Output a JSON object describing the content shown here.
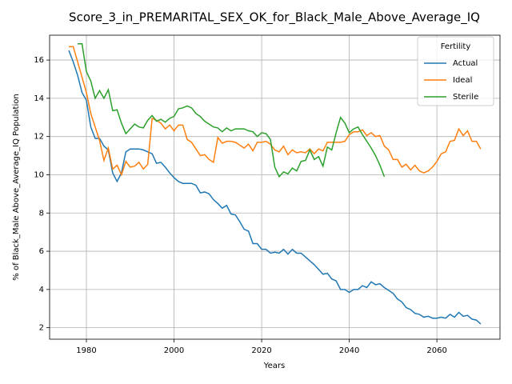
{
  "chart_data": {
    "type": "line",
    "title": "Score_3_in_PREMARITAL_SEX_OK_for_Black_Male_Above_Average_IQ",
    "x_label": "Years",
    "y_label": "% of Black_Male Above_Average_IQ Population",
    "legend_title": "Fertility",
    "legend_loc": "upper right",
    "grid": true,
    "xlim": [
      1971.6,
      2074.4
    ],
    "ylim": [
      1.4,
      17.3
    ],
    "xticks": [
      1980,
      2000,
      2020,
      2040,
      2060
    ],
    "yticks": [
      2,
      4,
      6,
      8,
      10,
      12,
      14,
      16
    ],
    "x": [
      1976,
      1977,
      1978,
      1979,
      1980,
      1981,
      1982,
      1983,
      1984,
      1985,
      1986,
      1987,
      1988,
      1989,
      1990,
      1991,
      1992,
      1993,
      1994,
      1995,
      1996,
      1997,
      1998,
      1999,
      2000,
      2001,
      2002,
      2003,
      2004,
      2005,
      2006,
      2007,
      2008,
      2009,
      2010,
      2011,
      2012,
      2013,
      2014,
      2015,
      2016,
      2017,
      2018,
      2019,
      2020,
      2021,
      2022,
      2023,
      2024,
      2025,
      2026,
      2027,
      2028,
      2029,
      2030,
      2031,
      2032,
      2033,
      2034,
      2035,
      2036,
      2037,
      2038,
      2039,
      2040,
      2041,
      2042,
      2043,
      2044,
      2045,
      2046,
      2047,
      2048,
      2049,
      2050,
      2051,
      2052,
      2053,
      2054,
      2055,
      2056,
      2057,
      2058,
      2059,
      2060,
      2061,
      2062,
      2063,
      2064,
      2065,
      2066,
      2067,
      2068,
      2069,
      2070
    ],
    "series": [
      {
        "name": "Actual",
        "color": "#1f77b4",
        "values": [
          16.5,
          15.9,
          15.2,
          14.3,
          13.9,
          12.5,
          11.9,
          11.9,
          11.5,
          11.3,
          10.1,
          9.65,
          10.1,
          11.2,
          11.35,
          11.35,
          11.35,
          11.3,
          11.2,
          11.1,
          10.6,
          10.65,
          10.4,
          10.1,
          9.85,
          9.65,
          9.55,
          9.55,
          9.55,
          9.45,
          9.05,
          9.1,
          9.0,
          8.7,
          8.5,
          8.25,
          8.4,
          7.95,
          7.9,
          7.55,
          7.15,
          7.05,
          6.4,
          6.4,
          6.1,
          6.1,
          5.9,
          5.95,
          5.9,
          6.1,
          5.85,
          6.1,
          5.9,
          5.9,
          5.7,
          5.5,
          5.3,
          5.05,
          4.8,
          4.85,
          4.55,
          4.45,
          4.0,
          4.0,
          3.85,
          4.0,
          4.0,
          4.2,
          4.1,
          4.4,
          4.25,
          4.3,
          4.1,
          3.95,
          3.8,
          3.5,
          3.35,
          3.05,
          2.95,
          2.75,
          2.7,
          2.55,
          2.6,
          2.5,
          2.5,
          2.55,
          2.5,
          2.7,
          2.55,
          2.8,
          2.6,
          2.65,
          2.45,
          2.4,
          2.2
        ]
      },
      {
        "name": "Ideal",
        "color": "#ff7f0e",
        "values": [
          16.7,
          16.7,
          15.9,
          15.1,
          14.3,
          13.2,
          12.5,
          11.8,
          10.75,
          11.4,
          10.3,
          10.5,
          10.0,
          10.7,
          10.4,
          10.45,
          10.65,
          10.3,
          10.55,
          12.95,
          12.85,
          12.7,
          12.4,
          12.6,
          12.3,
          12.6,
          12.6,
          11.85,
          11.7,
          11.35,
          11.0,
          11.05,
          10.8,
          10.65,
          11.95,
          11.65,
          11.75,
          11.75,
          11.7,
          11.55,
          11.4,
          11.6,
          11.25,
          11.7,
          11.7,
          11.75,
          11.6,
          11.3,
          11.2,
          11.5,
          11.05,
          11.3,
          11.15,
          11.2,
          11.15,
          11.35,
          11.1,
          11.35,
          11.25,
          11.7,
          11.7,
          11.7,
          11.7,
          11.75,
          12.1,
          12.25,
          12.25,
          12.35,
          12.05,
          12.2,
          12.0,
          12.05,
          11.5,
          11.3,
          10.8,
          10.8,
          10.4,
          10.55,
          10.25,
          10.5,
          10.2,
          10.1,
          10.2,
          10.4,
          10.7,
          11.1,
          11.2,
          11.75,
          11.8,
          12.4,
          12.05,
          12.3,
          11.75,
          11.75,
          11.35
        ]
      },
      {
        "name": "Sterile",
        "color": "#2ca02c",
        "values": [
          null,
          null,
          16.85,
          16.85,
          15.4,
          14.9,
          14.0,
          14.4,
          14.0,
          14.45,
          13.35,
          13.4,
          12.7,
          12.15,
          12.4,
          12.65,
          12.5,
          12.45,
          12.85,
          13.1,
          12.8,
          12.9,
          12.75,
          12.95,
          13.05,
          13.45,
          13.5,
          13.6,
          13.5,
          13.2,
          13.05,
          12.8,
          12.65,
          12.5,
          12.45,
          12.25,
          12.45,
          12.3,
          12.4,
          12.4,
          12.4,
          12.3,
          12.25,
          12.0,
          12.2,
          12.15,
          11.85,
          10.4,
          9.9,
          10.15,
          10.05,
          10.35,
          10.2,
          10.7,
          10.75,
          11.3,
          10.8,
          10.95,
          10.45,
          11.45,
          11.3,
          12.2,
          13.0,
          12.7,
          12.2,
          12.4,
          12.5,
          12.1,
          11.75,
          11.4,
          11.0,
          10.5,
          9.9,
          null,
          null,
          null,
          null,
          null,
          null,
          null,
          null,
          null,
          null,
          null,
          null,
          null,
          null,
          null,
          null,
          null,
          null,
          null,
          null,
          null,
          null
        ]
      }
    ]
  }
}
